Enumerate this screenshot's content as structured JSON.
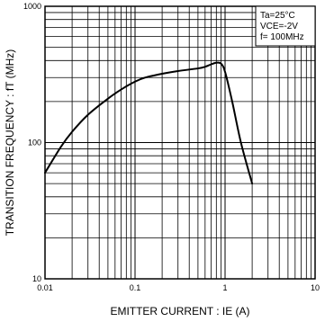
{
  "chart_data": {
    "type": "line",
    "title": "",
    "xlabel": "EMITTER CURRENT : IE (A)",
    "ylabel": "TRANSITION FREQUENCY : fT (MHz)",
    "x_scale": "log",
    "y_scale": "log",
    "xlim": [
      0.01,
      10
    ],
    "ylim": [
      10,
      1000
    ],
    "grid": true,
    "x_tick_labels": [
      "0.01",
      "0.1",
      "1",
      "10"
    ],
    "y_tick_labels": [
      "10",
      "100",
      "1000"
    ],
    "annotation": {
      "lines": [
        "Ta=25°C",
        "VCE=-2V",
        "f= 100MHz"
      ],
      "placement": "top-right"
    },
    "series": [
      {
        "x": [
          0.01,
          0.015,
          0.02,
          0.03,
          0.05,
          0.07,
          0.1,
          0.13,
          0.2,
          0.3,
          0.5,
          0.6,
          0.7,
          0.8,
          0.9,
          1.0,
          1.2,
          1.5,
          2.0
        ],
        "y": [
          60,
          93,
          120,
          160,
          210,
          245,
          280,
          300,
          320,
          335,
          350,
          360,
          375,
          385,
          380,
          330,
          200,
          100,
          50
        ]
      }
    ]
  }
}
